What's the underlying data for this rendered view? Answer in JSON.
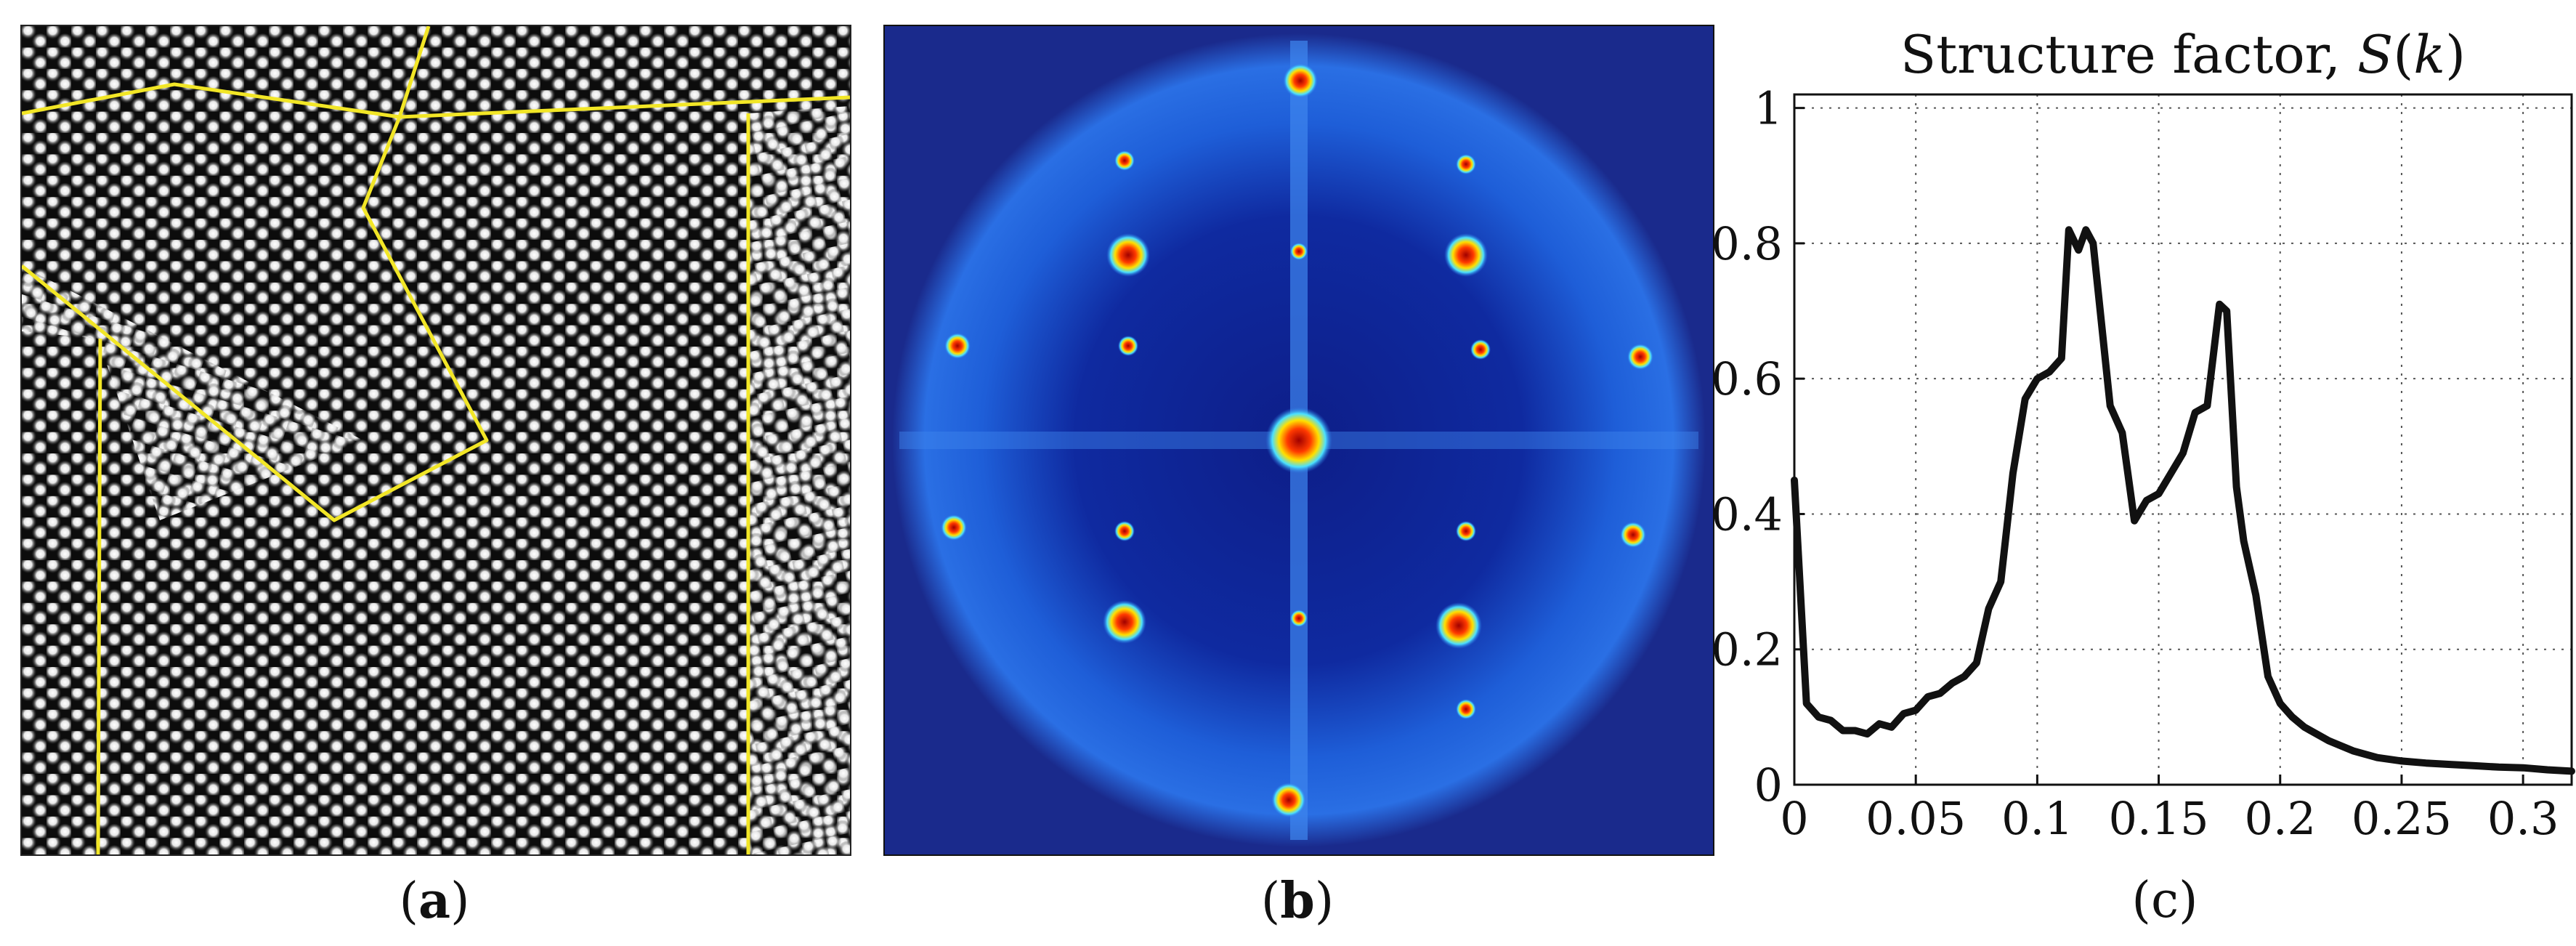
{
  "captions": {
    "a": "a",
    "b": "b",
    "c": "c"
  },
  "colors": {
    "grain_boundary": "#f2e626",
    "particle": "#ffffff",
    "background_dark": "#0c0c0c",
    "fft_background": "#1a2a8c",
    "curve": "#111111"
  },
  "chart_data": {
    "type": "line",
    "title": "Structure factor, S(k)",
    "xlabel": "",
    "ylabel": "",
    "xlim": [
      0,
      0.32
    ],
    "ylim": [
      0,
      1.02
    ],
    "grid": true,
    "x_ticks": [
      "0",
      "0.05",
      "0.1",
      "0.15",
      "0.2",
      "0.25",
      "0.3"
    ],
    "x_tick_values": [
      0,
      0.05,
      0.1,
      0.15,
      0.2,
      0.25,
      0.3
    ],
    "y_ticks": [
      "0",
      "0.2",
      "0.4",
      "0.6",
      "0.8",
      "1"
    ],
    "y_tick_values": [
      0,
      0.2,
      0.4,
      0.6,
      0.8,
      1.0
    ],
    "series": [
      {
        "x": [
          0,
          0.005,
          0.01,
          0.015,
          0.02,
          0.025,
          0.03,
          0.035,
          0.04,
          0.045,
          0.05,
          0.055,
          0.06,
          0.065,
          0.07,
          0.075,
          0.08,
          0.085,
          0.09,
          0.095,
          0.1,
          0.105,
          0.11,
          0.113,
          0.117,
          0.12,
          0.123,
          0.13,
          0.135,
          0.14,
          0.145,
          0.15,
          0.155,
          0.16,
          0.165,
          0.17,
          0.175,
          0.178,
          0.182,
          0.185,
          0.19,
          0.195,
          0.2,
          0.205,
          0.21,
          0.22,
          0.23,
          0.24,
          0.25,
          0.26,
          0.27,
          0.28,
          0.29,
          0.3,
          0.31,
          0.32
        ],
        "y": [
          0.45,
          0.12,
          0.1,
          0.095,
          0.08,
          0.08,
          0.075,
          0.09,
          0.085,
          0.105,
          0.11,
          0.13,
          0.135,
          0.15,
          0.16,
          0.18,
          0.26,
          0.3,
          0.46,
          0.57,
          0.6,
          0.61,
          0.63,
          0.82,
          0.79,
          0.82,
          0.8,
          0.56,
          0.52,
          0.39,
          0.42,
          0.43,
          0.46,
          0.49,
          0.55,
          0.56,
          0.71,
          0.7,
          0.44,
          0.36,
          0.28,
          0.16,
          0.12,
          0.1,
          0.085,
          0.065,
          0.05,
          0.04,
          0.035,
          0.032,
          0.03,
          0.028,
          0.026,
          0.025,
          0.022,
          0.02
        ]
      }
    ]
  }
}
